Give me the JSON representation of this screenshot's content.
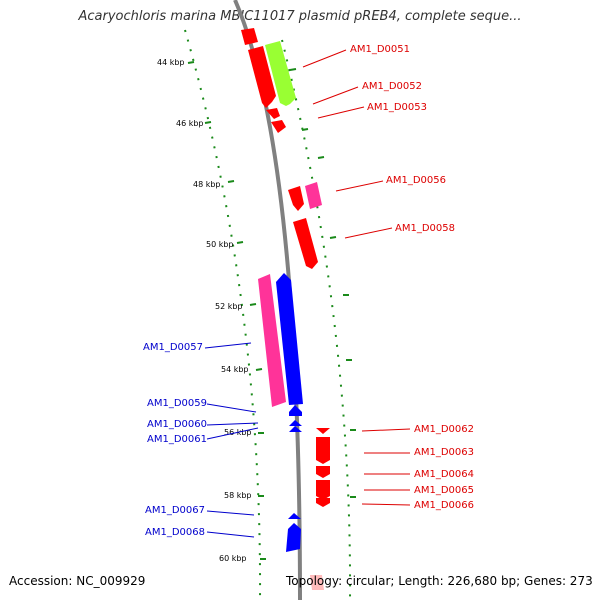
{
  "title": "Acaryochloris marina MBIC11017 plasmid pREB4, complete seque...",
  "footer": {
    "accession": "Accession: NC_009929",
    "topology": "Topology: circular; Length: 226,680 bp; Genes: 273"
  },
  "colors": {
    "backbone": "#808080",
    "tick": "#1a8a1a",
    "plus_gene": "#ff0000",
    "minus_gene": "#0000ff",
    "pink_gene": "#ff3399",
    "green_gene": "#99ff33",
    "plus_label": "#dd0000",
    "minus_label": "#0000cc"
  },
  "kbp_ticks": [
    "44 kbp",
    "46 kbp",
    "48 kbp",
    "50 kbp",
    "52 kbp",
    "54 kbp",
    "56 kbp",
    "58 kbp",
    "60 kbp"
  ],
  "plus_labels": [
    "AM1_D0051",
    "AM1_D0052",
    "AM1_D0053",
    "AM1_D0056",
    "AM1_D0058",
    "AM1_D0062",
    "AM1_D0063",
    "AM1_D0064",
    "AM1_D0065",
    "AM1_D0066"
  ],
  "minus_labels": [
    "AM1_D0057",
    "AM1_D0059",
    "AM1_D0060",
    "AM1_D0061",
    "AM1_D0067",
    "AM1_D0068"
  ]
}
